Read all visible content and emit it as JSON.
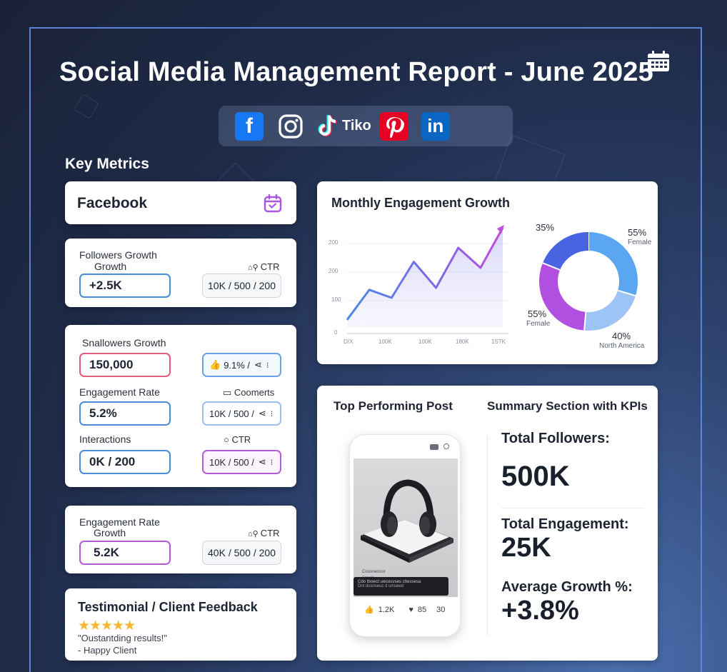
{
  "header": {
    "title": "Social Media Management Report - June 2025"
  },
  "social": {
    "tiktok_label": "Tiko"
  },
  "key_metrics": {
    "heading": "Key Metrics"
  },
  "facebook_card": {
    "title": "Facebook"
  },
  "followers_card": {
    "label_line1": "Followers Growth",
    "label_line2": "Growth",
    "ctr_label": "CTR",
    "value": "+2.5K",
    "stats": "10K / 500 / 200"
  },
  "mid_card": {
    "row1_label": "Snallowers Growth",
    "row1_value": "150,000",
    "row1_stats": "9.1% /",
    "row2_label": "Engagement Rate",
    "row2_aux": "Coomerts",
    "row2_value": "5.2%",
    "row2_stats": "10K / 500 /",
    "row3_label": "Interactions",
    "row3_aux": "CTR",
    "row3_value": "0K / 200",
    "row3_stats": "10K / 500 /"
  },
  "engagement_card": {
    "label_line1": "Engagement Rate",
    "label_line2": "Growth",
    "ctr_label": "CTR",
    "value": "5.2K",
    "stats": "40K / 500 / 200"
  },
  "testimonial": {
    "title": "Testimonial / Client Feedback",
    "stars": "★★★★★",
    "quote": "\"Oustantding results!\"",
    "author": "- Happy Client"
  },
  "engagement_chart": {
    "title": "Monthly Engagement Growth",
    "y_ticks": [
      "200",
      "200",
      "100",
      "0"
    ],
    "x_ticks": [
      "DIX",
      "100K",
      "100K",
      "180K",
      "1STK"
    ]
  },
  "chart_data": [
    {
      "type": "area",
      "title": "Monthly Engagement Growth",
      "x_tick_labels": [
        "DIX",
        "100K",
        "100K",
        "180K",
        "1STK"
      ],
      "y_tick_labels": [
        "200",
        "200",
        "100",
        "0"
      ],
      "values": [
        0.08,
        0.38,
        0.3,
        0.66,
        0.4,
        0.8,
        0.6,
        1.0
      ]
    },
    {
      "type": "pie",
      "donut": true,
      "slices": [
        {
          "label": "Female",
          "value": 55,
          "display": "55%",
          "color": "#5aa6f0"
        },
        {
          "label": "",
          "value": 35,
          "display": "35%",
          "color": "#4a63e0"
        },
        {
          "label": "Female",
          "value": 55,
          "display": "55%",
          "color": "#b14fe0"
        },
        {
          "label": "North America",
          "value": 40,
          "display": "40%",
          "color": "#9ec4f5"
        }
      ]
    }
  ],
  "donut_labels": {
    "tl_pct": "35%",
    "tr_pct": "55%",
    "tr_sub": "Female",
    "bl_pct": "55%",
    "bl_sub": "Female",
    "br_pct": "40%",
    "br_sub": "North America"
  },
  "top_post": {
    "title": "Top Performing Post",
    "caption_title": "Cooonencor",
    "caption_sub": "Grossly",
    "overlay_line1": "Cdo tbowct uwcecvses chessesa",
    "overlay_line2": "Dnt dcsnseuc d cmseed",
    "likes": "1.2K",
    "comments": "85",
    "shares": "30"
  },
  "summary": {
    "title": "Summary Section with KPIs",
    "followers_label": "Total Followers:",
    "followers_value": "500K",
    "engagement_label": "Total Engagement:",
    "engagement_value": "25K",
    "growth_label": "Average Growth %:",
    "growth_value": "+3.8%"
  },
  "colors": {
    "accent": "#4a8bd8",
    "red_accent": "#e05a7a",
    "purple_accent": "#b25ad8",
    "star": "#f5b82e"
  }
}
